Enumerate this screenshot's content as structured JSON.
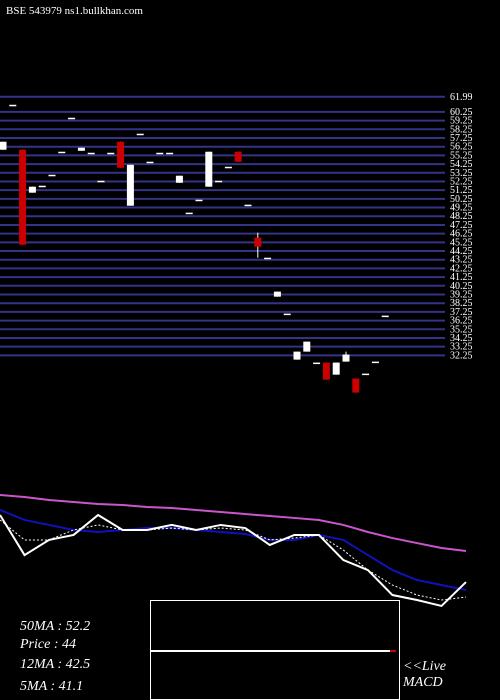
{
  "chart_data": [
    {
      "type": "candlestick",
      "title": "BSE 543979 ns1.bullkhan.com",
      "open": [
        55.9,
        61.07,
        55.9,
        50.96,
        51.76,
        53.02,
        55.67,
        59.58,
        55.78,
        55.55,
        52.33,
        55.55,
        56.82,
        49.46,
        57.74,
        54.52,
        55.55,
        55.55,
        52.1,
        48.66,
        50.15,
        51.65,
        52.33,
        53.94,
        55.67,
        49.58,
        45.78,
        43.48,
        39.0,
        37.05,
        31.76,
        32.68,
        31.42,
        31.42,
        30.03,
        31.53,
        29.58,
        30.15,
        31.53,
        36.82
      ],
      "high": [
        56.82,
        61.07,
        55.9,
        51.65,
        51.76,
        53.02,
        55.67,
        59.58,
        56.13,
        55.55,
        52.33,
        55.55,
        56.82,
        54.17,
        57.74,
        54.52,
        55.55,
        55.55,
        52.91,
        48.66,
        50.15,
        55.67,
        52.33,
        53.94,
        55.67,
        49.58,
        46.36,
        43.48,
        39.58,
        37.05,
        32.68,
        33.83,
        31.42,
        31.42,
        31.42,
        32.68,
        29.58,
        30.15,
        31.53,
        36.82
      ],
      "low": [
        55.9,
        61.07,
        44.98,
        50.96,
        51.76,
        53.02,
        55.67,
        59.58,
        55.78,
        55.55,
        52.33,
        55.55,
        53.83,
        49.46,
        57.74,
        54.52,
        55.55,
        55.55,
        52.1,
        48.66,
        50.15,
        51.65,
        52.33,
        53.94,
        54.52,
        49.58,
        43.48,
        43.48,
        39.0,
        37.05,
        31.76,
        32.68,
        31.42,
        29.46,
        30.03,
        31.53,
        27.97,
        30.15,
        31.53,
        36.82
      ],
      "close": [
        56.82,
        61.07,
        44.98,
        51.65,
        51.76,
        53.02,
        55.67,
        59.58,
        56.13,
        55.55,
        52.33,
        55.55,
        53.83,
        54.17,
        57.74,
        54.52,
        55.55,
        55.55,
        52.91,
        48.66,
        50.15,
        55.67,
        52.33,
        53.94,
        54.52,
        49.58,
        44.75,
        43.48,
        39.58,
        37.05,
        32.68,
        33.83,
        31.42,
        29.46,
        31.42,
        32.34,
        27.97,
        30.15,
        31.53,
        36.82
      ],
      "up_color": "#ffffff",
      "down_color": "#cc0000",
      "grid_color": "#333388",
      "ylim": [
        27,
        63
      ],
      "yticks": [
        61.99,
        60.25,
        59.25,
        58.25,
        57.25,
        56.25,
        55.25,
        54.25,
        53.25,
        52.25,
        51.25,
        50.25,
        49.25,
        48.25,
        47.25,
        46.25,
        45.25,
        44.25,
        43.25,
        42.25,
        41.25,
        40.25,
        39.25,
        38.25,
        37.25,
        36.25,
        35.25,
        34.25,
        33.25,
        32.25
      ],
      "grid": true
    },
    {
      "type": "line",
      "ylim": [
        0,
        100
      ],
      "series": [
        {
          "color": "#cc55cc",
          "style": "solid",
          "values": [
            88.9,
            87.4,
            85.2,
            83.7,
            82.2,
            81.5,
            80,
            79.3,
            77.8,
            76.3,
            74.8,
            73.3,
            71.9,
            70.4,
            66.7,
            61.5,
            57,
            53.3,
            49.6,
            47.4
          ]
        },
        {
          "color": "#1111bb",
          "style": "solid",
          "values": [
            77.8,
            70.4,
            66.7,
            63,
            61.5,
            63,
            64.4,
            64.4,
            63,
            61.5,
            60,
            55.6,
            55.6,
            59.3,
            55.6,
            44.4,
            33.3,
            25.9,
            22.2,
            18.5
          ]
        },
        {
          "color": "#ffffff",
          "style": "dotted",
          "values": [
            70.4,
            55.6,
            55.6,
            63,
            66.7,
            63,
            63,
            64.4,
            63,
            64.4,
            63,
            55.6,
            57,
            59.3,
            48.1,
            33.3,
            22.2,
            14.8,
            11.1,
            13.3
          ]
        },
        {
          "color": "#ffffff",
          "style": "solid",
          "values": [
            74.1,
            44.4,
            55.6,
            59.3,
            74.1,
            63,
            63,
            66.7,
            63,
            66.7,
            64.4,
            51.9,
            59.3,
            59.3,
            40.7,
            33.3,
            14.8,
            11.1,
            6.7,
            24.4
          ]
        }
      ]
    }
  ],
  "info": {
    "ma50": "50MA : 52.2",
    "price": "Price   : 44",
    "ma12": "12MA : 42.5",
    "ma5": "5MA : 41.1",
    "macd_live": "<<Live",
    "macd": "MACD"
  }
}
